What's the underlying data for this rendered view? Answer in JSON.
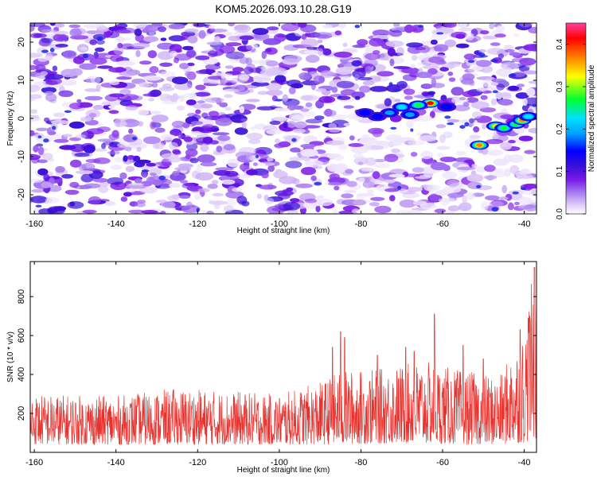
{
  "figure": {
    "title": "KOM5.2026.093.10.28.G19"
  },
  "chart_data": [
    {
      "type": "heatmap",
      "title": "KOM5.2026.093.10.28.G19",
      "xlabel": "Height of straight line (km)",
      "ylabel": "Frequency (Hz)",
      "xlim": [
        -161,
        -37
      ],
      "ylim": [
        -25,
        25
      ],
      "xticks": [
        -160,
        -140,
        -120,
        -100,
        -80,
        -60,
        -40
      ],
      "yticks": [
        -20,
        -10,
        0,
        10,
        20
      ],
      "grid": false,
      "colorbar": {
        "label": "Normalized spectral amplitude",
        "range": [
          0,
          0.45
        ],
        "ticks": [
          "0.0",
          "0.1",
          "0.2",
          "0.3",
          "0.4"
        ],
        "colormap": [
          "#ffffff",
          "#dcc8f8",
          "#a070f0",
          "#7a18e8",
          "#3a10d8",
          "#0000ff",
          "#00e0ff",
          "#00ff30",
          "#ffff00",
          "#ff8000",
          "#ff0000",
          "#ff40a0"
        ]
      },
      "hotspots": [
        {
          "x": -63,
          "y": 4,
          "value": 0.42
        },
        {
          "x": -66,
          "y": 3.5,
          "value": 0.3
        },
        {
          "x": -70,
          "y": 3,
          "value": 0.22
        },
        {
          "x": -73,
          "y": 1.5,
          "value": 0.18
        },
        {
          "x": -76,
          "y": 0.5,
          "value": 0.13
        },
        {
          "x": -79,
          "y": 1.5,
          "value": 0.1
        },
        {
          "x": -68,
          "y": 1,
          "value": 0.15
        },
        {
          "x": -59,
          "y": 3,
          "value": 0.12
        },
        {
          "x": -51,
          "y": -7,
          "value": 0.38
        },
        {
          "x": -47,
          "y": -2,
          "value": 0.33
        },
        {
          "x": -45,
          "y": -2.5,
          "value": 0.3
        },
        {
          "x": -42,
          "y": -1.5,
          "value": 0.28
        },
        {
          "x": -40.5,
          "y": -0.5,
          "value": 0.37
        },
        {
          "x": -39,
          "y": 0.5,
          "value": 0.24
        }
      ]
    },
    {
      "type": "line",
      "xlabel": "Height of straight line (km)",
      "ylabel": "SNR (10 * v/v)",
      "xlim": [
        -161,
        -37
      ],
      "ylim": [
        0,
        980
      ],
      "xticks": [
        -160,
        -140,
        -120,
        -100,
        -80,
        -60,
        -40
      ],
      "yticks": [
        200,
        400,
        600,
        800
      ],
      "grid": false,
      "series": [
        {
          "color": "#e8322e",
          "envelope": [
            {
              "x": -161,
              "low": 40,
              "high": 300
            },
            {
              "x": -140,
              "low": 40,
              "high": 290
            },
            {
              "x": -125,
              "low": 40,
              "high": 330
            },
            {
              "x": -100,
              "low": 40,
              "high": 300
            },
            {
              "x": -90,
              "low": 40,
              "high": 360
            },
            {
              "x": -85,
              "low": 40,
              "high": 420
            },
            {
              "x": -75,
              "low": 45,
              "high": 430
            },
            {
              "x": -65,
              "low": 45,
              "high": 470
            },
            {
              "x": -55,
              "low": 40,
              "high": 420
            },
            {
              "x": -46,
              "low": 40,
              "high": 390
            },
            {
              "x": -43,
              "low": 45,
              "high": 520
            },
            {
              "x": -40,
              "low": 50,
              "high": 620
            },
            {
              "x": -38,
              "low": 60,
              "high": 900
            },
            {
              "x": -37,
              "low": 70,
              "high": 980
            }
          ],
          "peaks": [
            {
              "x": -87,
              "y": 540
            },
            {
              "x": -85,
              "y": 620
            },
            {
              "x": -84,
              "y": 590
            },
            {
              "x": -76,
              "y": 500
            },
            {
              "x": -69,
              "y": 540
            },
            {
              "x": -67,
              "y": 520
            },
            {
              "x": -62,
              "y": 710
            },
            {
              "x": -55,
              "y": 550
            },
            {
              "x": -50,
              "y": 480
            },
            {
              "x": -41,
              "y": 630
            },
            {
              "x": -39,
              "y": 690
            },
            {
              "x": -37.5,
              "y": 950
            }
          ]
        }
      ]
    }
  ]
}
